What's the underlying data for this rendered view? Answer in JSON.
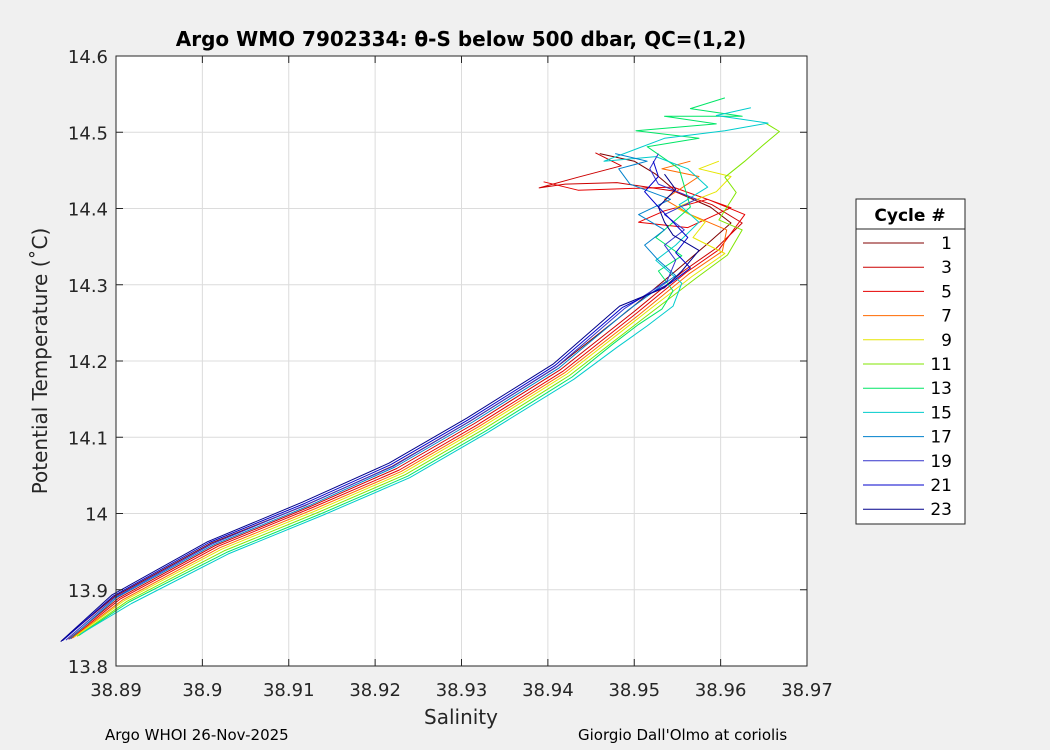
{
  "chart_data": {
    "type": "line",
    "title": "Argo WMO 7902334: θ-S below 500 dbar,  QC=(1,2)",
    "xlabel": "Salinity",
    "ylabel": "Potential Temperature (˚C)",
    "xlim": [
      38.89,
      38.97
    ],
    "ylim": [
      13.8,
      14.6
    ],
    "x_ticks": [
      "38.89",
      "38.9",
      "38.91",
      "38.92",
      "38.93",
      "38.94",
      "38.95",
      "38.96",
      "38.97"
    ],
    "y_ticks": [
      "13.8",
      "13.9",
      "14",
      "14.1",
      "14.2",
      "14.3",
      "14.4",
      "14.5",
      "14.6"
    ],
    "grid": true,
    "legend": {
      "title": "Cycle #",
      "placement": "outside-right"
    },
    "series": [
      {
        "name": "1",
        "color": "#800000",
        "points": [
          [
            38.8837,
            13.833
          ],
          [
            38.8898,
            13.891
          ],
          [
            38.901,
            13.961
          ],
          [
            38.912,
            14.011
          ],
          [
            38.922,
            14.062
          ],
          [
            38.931,
            14.121
          ],
          [
            38.941,
            14.192
          ],
          [
            38.9495,
            14.268
          ],
          [
            38.9552,
            14.322
          ],
          [
            38.9583,
            14.352
          ],
          [
            38.9612,
            14.381
          ],
          [
            38.9588,
            14.402
          ],
          [
            38.955,
            14.421
          ],
          [
            38.9525,
            14.445
          ],
          [
            38.95,
            14.462
          ],
          [
            38.946,
            14.472
          ]
        ]
      },
      {
        "name": "3",
        "color": "#cc0000",
        "points": [
          [
            38.8845,
            13.835
          ],
          [
            38.8903,
            13.889
          ],
          [
            38.9015,
            13.958
          ],
          [
            38.9125,
            14.009
          ],
          [
            38.9225,
            14.059
          ],
          [
            38.9315,
            14.118
          ],
          [
            38.9415,
            14.189
          ],
          [
            38.95,
            14.265
          ],
          [
            38.9557,
            14.318
          ],
          [
            38.9595,
            14.348
          ],
          [
            38.9625,
            14.381
          ],
          [
            38.959,
            14.405
          ],
          [
            38.9545,
            14.423
          ],
          [
            38.948,
            14.434
          ],
          [
            38.942,
            14.432
          ],
          [
            38.939,
            14.427
          ],
          [
            38.9435,
            14.441
          ],
          [
            38.9485,
            14.456
          ],
          [
            38.9455,
            14.473
          ]
        ]
      },
      {
        "name": "5",
        "color": "#e60000",
        "points": [
          [
            38.8848,
            13.836
          ],
          [
            38.8905,
            13.888
          ],
          [
            38.9018,
            13.957
          ],
          [
            38.9128,
            14.008
          ],
          [
            38.9228,
            14.057
          ],
          [
            38.9318,
            14.116
          ],
          [
            38.9418,
            14.187
          ],
          [
            38.9503,
            14.263
          ],
          [
            38.956,
            14.316
          ],
          [
            38.9598,
            14.346
          ],
          [
            38.9628,
            14.392
          ],
          [
            38.9585,
            14.412
          ],
          [
            38.9535,
            14.397
          ],
          [
            38.9505,
            14.382
          ],
          [
            38.9562,
            14.375
          ],
          [
            38.9612,
            14.401
          ],
          [
            38.9545,
            14.428
          ],
          [
            38.9435,
            14.424
          ],
          [
            38.9395,
            14.435
          ]
        ]
      },
      {
        "name": "7",
        "color": "#ff6a00",
        "points": [
          [
            38.885,
            13.837
          ],
          [
            38.8908,
            13.887
          ],
          [
            38.902,
            13.955
          ],
          [
            38.913,
            14.006
          ],
          [
            38.923,
            14.055
          ],
          [
            38.932,
            14.114
          ],
          [
            38.942,
            14.185
          ],
          [
            38.9506,
            14.261
          ],
          [
            38.9563,
            14.314
          ],
          [
            38.9602,
            14.344
          ],
          [
            38.9607,
            14.372
          ],
          [
            38.9565,
            14.392
          ],
          [
            38.9535,
            14.412
          ],
          [
            38.9575,
            14.442
          ],
          [
            38.9532,
            14.452
          ],
          [
            38.9565,
            14.462
          ]
        ]
      },
      {
        "name": "9",
        "color": "#e6e600",
        "points": [
          [
            38.8852,
            13.838
          ],
          [
            38.891,
            13.886
          ],
          [
            38.9022,
            13.953
          ],
          [
            38.9132,
            14.004
          ],
          [
            38.9232,
            14.053
          ],
          [
            38.9322,
            14.112
          ],
          [
            38.9422,
            14.183
          ],
          [
            38.9508,
            14.259
          ],
          [
            38.9567,
            14.311
          ],
          [
            38.9605,
            14.341
          ],
          [
            38.9568,
            14.362
          ],
          [
            38.9582,
            14.382
          ],
          [
            38.9548,
            14.401
          ],
          [
            38.9595,
            14.422
          ],
          [
            38.9612,
            14.442
          ],
          [
            38.9575,
            14.452
          ],
          [
            38.9598,
            14.462
          ]
        ]
      },
      {
        "name": "11",
        "color": "#80e600",
        "points": [
          [
            38.8855,
            13.839
          ],
          [
            38.8913,
            13.885
          ],
          [
            38.9025,
            13.951
          ],
          [
            38.9135,
            14.002
          ],
          [
            38.9235,
            14.051
          ],
          [
            38.9325,
            14.11
          ],
          [
            38.9425,
            14.181
          ],
          [
            38.9512,
            14.257
          ],
          [
            38.9572,
            14.309
          ],
          [
            38.9608,
            14.339
          ],
          [
            38.9625,
            14.372
          ],
          [
            38.9598,
            14.385
          ],
          [
            38.9618,
            14.421
          ],
          [
            38.9605,
            14.441
          ],
          [
            38.9628,
            14.462
          ],
          [
            38.9648,
            14.482
          ],
          [
            38.9668,
            14.501
          ],
          [
            38.9652,
            14.512
          ]
        ]
      },
      {
        "name": "13",
        "color": "#00e666",
        "points": [
          [
            38.8857,
            13.84
          ],
          [
            38.8915,
            13.884
          ],
          [
            38.9028,
            13.949
          ],
          [
            38.9138,
            14.0
          ],
          [
            38.9238,
            14.049
          ],
          [
            38.9328,
            14.108
          ],
          [
            38.9428,
            14.179
          ],
          [
            38.9475,
            14.222
          ],
          [
            38.9505,
            14.248
          ],
          [
            38.9532,
            14.268
          ],
          [
            38.9545,
            14.292
          ],
          [
            38.9528,
            14.318
          ],
          [
            38.9555,
            14.338
          ],
          [
            38.9525,
            14.362
          ],
          [
            38.9565,
            14.402
          ],
          [
            38.9552,
            14.452
          ],
          [
            38.9515,
            14.481
          ],
          [
            38.9575,
            14.492
          ],
          [
            38.9502,
            14.502
          ],
          [
            38.9595,
            14.511
          ],
          [
            38.9535,
            14.521
          ],
          [
            38.9625,
            14.521
          ],
          [
            38.9565,
            14.531
          ],
          [
            38.9605,
            14.545
          ]
        ]
      },
      {
        "name": "15",
        "color": "#00cccc",
        "points": [
          [
            38.8859,
            13.842
          ],
          [
            38.8918,
            13.882
          ],
          [
            38.903,
            13.947
          ],
          [
            38.914,
            13.998
          ],
          [
            38.924,
            14.047
          ],
          [
            38.933,
            14.106
          ],
          [
            38.943,
            14.176
          ],
          [
            38.948,
            14.218
          ],
          [
            38.9515,
            14.246
          ],
          [
            38.9545,
            14.272
          ],
          [
            38.9555,
            14.302
          ],
          [
            38.9525,
            14.332
          ],
          [
            38.9548,
            14.352
          ],
          [
            38.9575,
            14.382
          ],
          [
            38.9552,
            14.405
          ],
          [
            38.9585,
            14.428
          ],
          [
            38.9562,
            14.452
          ],
          [
            38.9525,
            14.468
          ],
          [
            38.9465,
            14.462
          ],
          [
            38.9535,
            14.492
          ],
          [
            38.9605,
            14.502
          ],
          [
            38.9655,
            14.512
          ],
          [
            38.9595,
            14.522
          ],
          [
            38.9635,
            14.532
          ]
        ]
      },
      {
        "name": "17",
        "color": "#0080cc",
        "points": [
          [
            38.8846,
            13.835
          ],
          [
            38.8901,
            13.89
          ],
          [
            38.9013,
            13.959
          ],
          [
            38.9123,
            14.01
          ],
          [
            38.9223,
            14.061
          ],
          [
            38.9313,
            14.12
          ],
          [
            38.9413,
            14.191
          ],
          [
            38.9492,
            14.266
          ],
          [
            38.9548,
            14.312
          ],
          [
            38.9528,
            14.332
          ],
          [
            38.9512,
            14.352
          ],
          [
            38.9535,
            14.372
          ],
          [
            38.9505,
            14.392
          ],
          [
            38.9542,
            14.412
          ],
          [
            38.9495,
            14.432
          ],
          [
            38.9482,
            14.452
          ],
          [
            38.9515,
            14.462
          ],
          [
            38.9478,
            14.472
          ]
        ]
      },
      {
        "name": "19",
        "color": "#3333cc",
        "points": [
          [
            38.8842,
            13.834
          ],
          [
            38.8899,
            13.89
          ],
          [
            38.9011,
            13.96
          ],
          [
            38.9121,
            14.012
          ],
          [
            38.9221,
            14.062
          ],
          [
            38.9311,
            14.122
          ],
          [
            38.9411,
            14.193
          ],
          [
            38.9489,
            14.269
          ],
          [
            38.9538,
            14.305
          ],
          [
            38.9548,
            14.332
          ],
          [
            38.9535,
            14.352
          ],
          [
            38.9558,
            14.372
          ],
          [
            38.9535,
            14.392
          ],
          [
            38.9572,
            14.412
          ],
          [
            38.9528,
            14.432
          ],
          [
            38.9518,
            14.452
          ],
          [
            38.9528,
            14.472
          ]
        ]
      },
      {
        "name": "21",
        "color": "#0000cc",
        "points": [
          [
            38.8838,
            13.833
          ],
          [
            38.8897,
            13.892
          ],
          [
            38.9008,
            13.962
          ],
          [
            38.9118,
            14.013
          ],
          [
            38.9218,
            14.064
          ],
          [
            38.9308,
            14.123
          ],
          [
            38.9408,
            14.194
          ],
          [
            38.9486,
            14.27
          ],
          [
            38.9542,
            14.302
          ],
          [
            38.9565,
            14.322
          ],
          [
            38.9548,
            14.342
          ],
          [
            38.9562,
            14.362
          ],
          [
            38.9545,
            14.382
          ],
          [
            38.9528,
            14.402
          ],
          [
            38.9512,
            14.422
          ],
          [
            38.9528,
            14.442
          ],
          [
            38.9522,
            14.462
          ]
        ]
      },
      {
        "name": "23",
        "color": "#00008b",
        "points": [
          [
            38.8836,
            13.832
          ],
          [
            38.8895,
            13.893
          ],
          [
            38.9006,
            13.963
          ],
          [
            38.9116,
            14.015
          ],
          [
            38.9216,
            14.066
          ],
          [
            38.9306,
            14.125
          ],
          [
            38.9406,
            14.196
          ],
          [
            38.9483,
            14.272
          ],
          [
            38.9535,
            14.296
          ],
          [
            38.9555,
            14.318
          ],
          [
            38.9575,
            14.345
          ],
          [
            38.9545,
            14.365
          ],
          [
            38.9535,
            14.382
          ],
          [
            38.9528,
            14.402
          ],
          [
            38.9548,
            14.425
          ],
          [
            38.9535,
            14.445
          ]
        ]
      }
    ]
  },
  "footer": {
    "left": "Argo WHOI 26-Nov-2025",
    "right": "Giorgio Dall'Olmo at coriolis"
  }
}
